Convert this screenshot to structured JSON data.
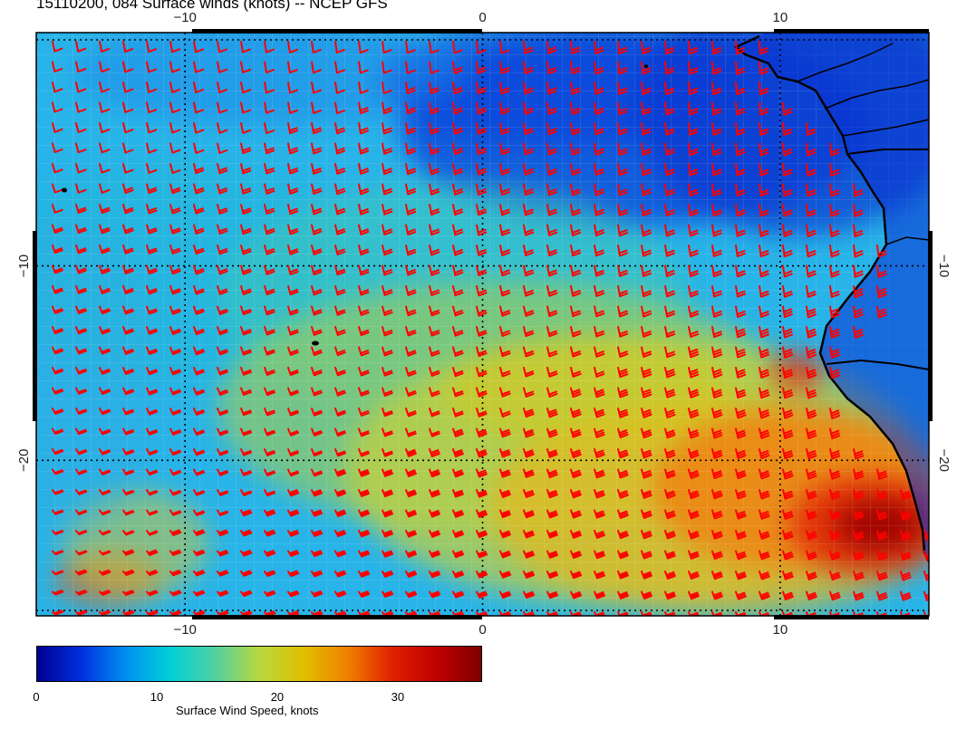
{
  "title": "15110200, 084 Surface winds (knots) -- NCEP GFS",
  "map": {
    "lon_range": [
      -15,
      15
    ],
    "lat_range": [
      -28,
      2
    ],
    "lon_ticks": [
      {
        "value": -10,
        "label": "−10"
      },
      {
        "value": 0,
        "label": "0"
      },
      {
        "value": 10,
        "label": "10"
      }
    ],
    "lat_ticks": [
      {
        "value": -10,
        "label": "−10"
      },
      {
        "value": -20,
        "label": "−20"
      }
    ],
    "barb_color": "#ff0000",
    "coast_color": "#000000",
    "grid_style": "dotted"
  },
  "colorbar": {
    "title": "Surface Wind Speed, knots",
    "range": [
      0,
      37
    ],
    "tick_labels": [
      {
        "value": 0,
        "label": "0"
      },
      {
        "value": 10,
        "label": "10"
      },
      {
        "value": 20,
        "label": "20"
      },
      {
        "value": 30,
        "label": "30"
      }
    ],
    "colormap": [
      "#00008f",
      "#0030e0",
      "#0090f0",
      "#00d0d8",
      "#50d0a0",
      "#b8d840",
      "#e0c000",
      "#f08000",
      "#e02000",
      "#c00000",
      "#800000"
    ]
  }
}
